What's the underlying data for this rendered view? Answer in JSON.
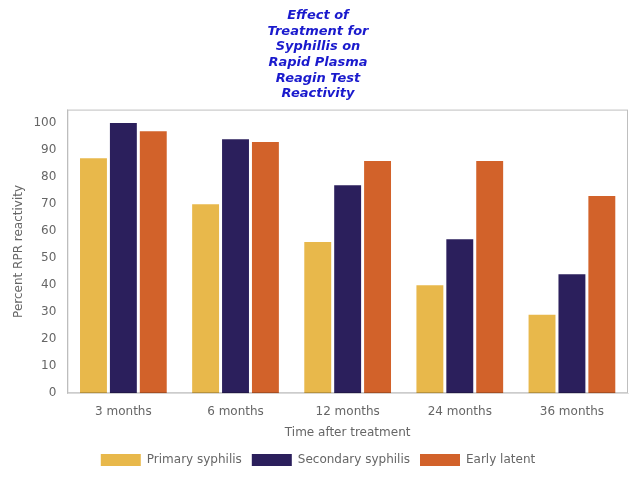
{
  "chart_data": {
    "type": "bar",
    "title": "Effect of\nTreatment for\nSyphillis on\nRapid Plasma\nReagin Test\nReactivity",
    "x_label": "Time after treatment",
    "y_label": "Percent RPR reactivity",
    "categories": [
      "3 months",
      "6 months",
      "12 months",
      "24 months",
      "36 months"
    ],
    "series": [
      {
        "name": "Primary syphilis",
        "color": "#E8B84B",
        "values": [
          87,
          70,
          56,
          40,
          29
        ]
      },
      {
        "name": "Secondary syphilis",
        "color": "#2B1F5C",
        "values": [
          100,
          94,
          77,
          57,
          44
        ]
      },
      {
        "name": "Early latent",
        "color": "#D2622A",
        "values": [
          97,
          93,
          86,
          86,
          73
        ]
      }
    ],
    "ylim": [
      0,
      105
    ],
    "yticks": [
      0,
      10,
      20,
      30,
      40,
      50,
      60,
      70,
      80,
      90,
      100
    ],
    "grid": false,
    "legend": "bottom"
  }
}
